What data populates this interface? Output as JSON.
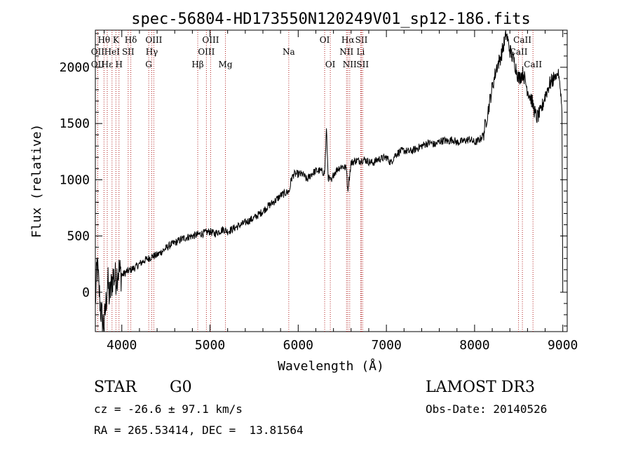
{
  "chart_data": {
    "type": "line",
    "title": "spec-56804-HD173550N120249V01_sp12-186.fits",
    "xlabel": "Wavelength (Å)",
    "ylabel": "Flux (relative)",
    "xlim": [
      3700,
      9050
    ],
    "ylim": [
      -350,
      2330
    ],
    "xticks": [
      4000,
      5000,
      6000,
      7000,
      8000,
      9000
    ],
    "yticks": [
      0,
      500,
      1000,
      1500,
      2000
    ],
    "line_color": "#000000",
    "marker_color": "#b22222",
    "series": [
      {
        "name": "flux",
        "x": [
          3700,
          3720,
          3740,
          3760,
          3780,
          3800,
          3820,
          3840,
          3860,
          3880,
          3900,
          3930,
          3960,
          4000,
          4050,
          4100,
          4150,
          4200,
          4250,
          4300,
          4350,
          4400,
          4450,
          4500,
          4550,
          4600,
          4650,
          4700,
          4750,
          4800,
          4850,
          4900,
          4950,
          5000,
          5050,
          5100,
          5150,
          5200,
          5250,
          5300,
          5350,
          5400,
          5450,
          5500,
          5550,
          5600,
          5650,
          5700,
          5750,
          5800,
          5850,
          5900,
          5920,
          5950,
          6000,
          6050,
          6100,
          6150,
          6200,
          6250,
          6300,
          6320,
          6340,
          6360,
          6380,
          6400,
          6450,
          6500,
          6550,
          6560,
          6600,
          6650,
          6700,
          6750,
          6800,
          6850,
          6900,
          6950,
          7000,
          7050,
          7100,
          7150,
          7200,
          7250,
          7300,
          7350,
          7400,
          7450,
          7500,
          7550,
          7600,
          7650,
          7700,
          7750,
          7800,
          7850,
          7900,
          7950,
          8000,
          8050,
          8100,
          8150,
          8200,
          8250,
          8300,
          8330,
          8360,
          8400,
          8450,
          8500,
          8550,
          8600,
          8650,
          8700,
          8750,
          8800,
          8850,
          8900,
          8950,
          8980,
          8990,
          9000
        ],
        "y": [
          -100,
          250,
          50,
          -150,
          -250,
          -300,
          -100,
          100,
          -50,
          50,
          150,
          120,
          200,
          150,
          180,
          200,
          220,
          250,
          280,
          300,
          320,
          330,
          360,
          390,
          420,
          440,
          460,
          480,
          490,
          500,
          510,
          520,
          530,
          540,
          520,
          540,
          560,
          540,
          560,
          580,
          600,
          620,
          640,
          660,
          690,
          720,
          760,
          790,
          820,
          860,
          880,
          900,
          1000,
          1050,
          1050,
          1050,
          1000,
          1050,
          1080,
          1080,
          1060,
          1450,
          1020,
          1000,
          980,
          1050,
          1100,
          1120,
          1100,
          900,
          1150,
          1170,
          1170,
          1180,
          1160,
          1150,
          1180,
          1190,
          1200,
          1150,
          1220,
          1250,
          1260,
          1250,
          1260,
          1280,
          1300,
          1320,
          1330,
          1310,
          1340,
          1350,
          1340,
          1360,
          1330,
          1340,
          1350,
          1360,
          1330,
          1350,
          1400,
          1600,
          1820,
          2000,
          2100,
          2200,
          2300,
          2150,
          2050,
          1900,
          1950,
          1800,
          1700,
          1550,
          1600,
          1750,
          1850,
          1900,
          1950,
          1750,
          1600,
          0
        ]
      }
    ],
    "line_markers": [
      {
        "name": "Hθ",
        "x": 3798,
        "row": 1
      },
      {
        "name": "OII",
        "x": 3727,
        "row": 2
      },
      {
        "name": "OII",
        "x": 3727,
        "row": 3
      },
      {
        "name": "Hε",
        "x": 3835,
        "row": 3
      },
      {
        "name": "HeI",
        "x": 3889,
        "row": 2
      },
      {
        "name": "K",
        "x": 3933,
        "row": 1
      },
      {
        "name": "H",
        "x": 3968,
        "row": 3
      },
      {
        "name": "SII",
        "x": 4072,
        "row": 2
      },
      {
        "name": "Hδ",
        "x": 4102,
        "row": 1
      },
      {
        "name": "OIII",
        "x": 4363,
        "row": 1
      },
      {
        "name": "Hγ",
        "x": 4340,
        "row": 2
      },
      {
        "name": "G",
        "x": 4305,
        "row": 3
      },
      {
        "name": "Hβ",
        "x": 4861,
        "row": 3
      },
      {
        "name": "OIII",
        "x": 4959,
        "row": 2
      },
      {
        "name": "OIII",
        "x": 5007,
        "row": 1
      },
      {
        "name": "Mg",
        "x": 5175,
        "row": 3
      },
      {
        "name": "Na",
        "x": 5893,
        "row": 2
      },
      {
        "name": "OI",
        "x": 6300,
        "row": 1
      },
      {
        "name": "OI",
        "x": 6364,
        "row": 3
      },
      {
        "name": "Hα",
        "x": 6563,
        "row": 1
      },
      {
        "name": "NII",
        "x": 6548,
        "row": 2
      },
      {
        "name": "NII",
        "x": 6584,
        "row": 3
      },
      {
        "name": "SII",
        "x": 6717,
        "row": 1
      },
      {
        "name": "Li",
        "x": 6708,
        "row": 2
      },
      {
        "name": "SII",
        "x": 6731,
        "row": 3
      },
      {
        "name": "CaII",
        "x": 8542,
        "row": 1
      },
      {
        "name": "CaII",
        "x": 8498,
        "row": 2
      },
      {
        "name": "CaII",
        "x": 8662,
        "row": 3
      }
    ]
  },
  "info": {
    "class": "STAR",
    "subclass": "G0",
    "survey": "LAMOST DR3",
    "cz": "cz = -26.6 ± 97.1 km/s",
    "obs_date": "Obs-Date: 20140526",
    "radec": "RA = 265.53414, DEC =  13.81564"
  }
}
